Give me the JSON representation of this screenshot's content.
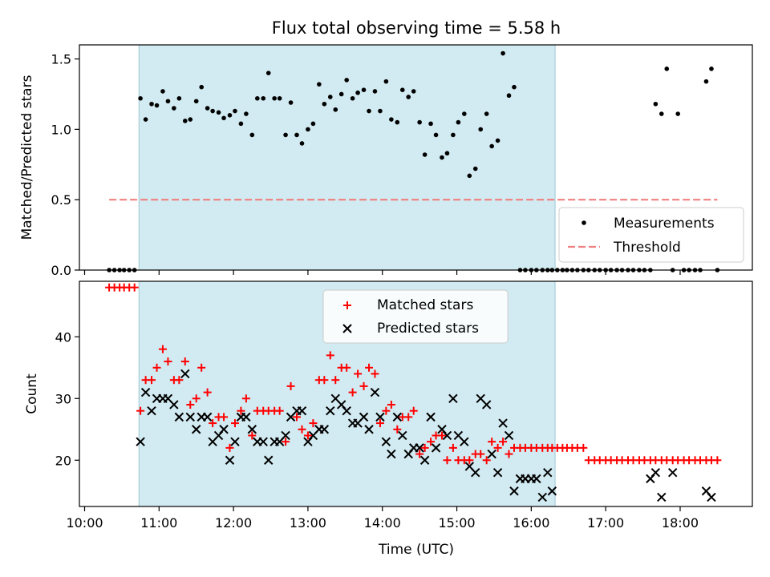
{
  "figure": {
    "title": "Flux total observing time = 5.58 h"
  },
  "chart_data": [
    {
      "type": "scatter",
      "ylabel": "Matched/Predicted stars",
      "ylim": [
        0,
        1.6
      ],
      "yticks": [
        "0.0",
        "0.5",
        "1.0",
        "1.5"
      ],
      "xlim": [
        9.93,
        18.97
      ],
      "shaded_interval": {
        "from": 10.73,
        "to": 16.32,
        "color": "#add8e6"
      },
      "legend": {
        "position": "lower-right",
        "labels": [
          "Measurements",
          "Threshold"
        ]
      },
      "threshold": {
        "name": "Threshold",
        "value": 0.5,
        "from": 10.33,
        "to": 18.5,
        "color": "#f08080"
      },
      "series": [
        {
          "name": "Measurements",
          "color": "#000000",
          "x": [
            10.33,
            10.4,
            10.47,
            10.53,
            10.6,
            10.67,
            10.75,
            10.82,
            10.9,
            10.97,
            11.05,
            11.12,
            11.2,
            11.27,
            11.35,
            11.42,
            11.5,
            11.57,
            11.65,
            11.72,
            11.8,
            11.87,
            11.95,
            12.02,
            12.1,
            12.17,
            12.25,
            12.32,
            12.4,
            12.47,
            12.55,
            12.62,
            12.7,
            12.77,
            12.85,
            12.92,
            13.0,
            13.07,
            13.15,
            13.22,
            13.3,
            13.37,
            13.45,
            13.52,
            13.6,
            13.67,
            13.75,
            13.82,
            13.9,
            13.97,
            14.05,
            14.12,
            14.2,
            14.27,
            14.35,
            14.42,
            14.5,
            14.57,
            14.65,
            14.72,
            14.8,
            14.87,
            14.95,
            15.02,
            15.1,
            15.17,
            15.25,
            15.32,
            15.4,
            15.47,
            15.55,
            15.62,
            15.7,
            15.77,
            15.85,
            15.92,
            16.0,
            16.07,
            16.15,
            16.22,
            16.28,
            16.35,
            16.42,
            16.48,
            16.55,
            16.62,
            16.7,
            16.77,
            16.85,
            16.92,
            17.0,
            17.07,
            17.15,
            17.22,
            17.3,
            17.37,
            17.45,
            17.52,
            17.6,
            17.67,
            17.75,
            17.82,
            17.9,
            17.97,
            18.05,
            18.12,
            18.2,
            18.27,
            18.35,
            18.42,
            18.5
          ],
          "y": [
            0,
            0,
            0,
            0,
            0,
            0,
            1.22,
            1.07,
            1.18,
            1.17,
            1.27,
            1.2,
            1.15,
            1.22,
            1.06,
            1.07,
            1.2,
            1.3,
            1.15,
            1.13,
            1.12,
            1.08,
            1.1,
            1.13,
            1.04,
            1.11,
            0.96,
            1.22,
            1.22,
            1.4,
            1.22,
            1.22,
            0.96,
            1.19,
            0.96,
            0.9,
            1.0,
            1.04,
            1.32,
            1.18,
            1.23,
            1.14,
            1.25,
            1.35,
            1.22,
            1.26,
            1.28,
            1.13,
            1.27,
            1.13,
            1.34,
            1.07,
            1.05,
            1.28,
            1.23,
            1.27,
            1.05,
            0.82,
            1.04,
            0.96,
            0.8,
            0.83,
            0.96,
            1.05,
            1.11,
            0.67,
            0.72,
            1.0,
            1.11,
            0.88,
            0.92,
            1.54,
            1.24,
            1.3,
            0,
            0,
            0,
            0,
            0,
            0,
            0,
            0,
            0,
            0,
            0,
            0,
            0,
            0,
            0,
            0,
            0,
            0,
            0,
            0,
            0,
            0,
            0,
            0,
            0,
            1.18,
            1.11,
            1.43,
            0,
            1.11,
            0,
            0,
            0,
            0,
            1.34,
            1.43,
            0
          ],
          "x_nonzero_order": "values listed in x order"
        }
      ]
    },
    {
      "type": "scatter",
      "xlabel": "Time (UTC)",
      "ylabel": "Count",
      "ylim": [
        12.5,
        49
      ],
      "yticks": [
        "20",
        "30",
        "40"
      ],
      "xlim": [
        9.93,
        18.97
      ],
      "xticks": [
        "10:00",
        "11:00",
        "12:00",
        "13:00",
        "14:00",
        "15:00",
        "16:00",
        "17:00",
        "18:00"
      ],
      "shaded_interval": {
        "from": 10.73,
        "to": 16.32,
        "color": "#add8e6"
      },
      "legend": {
        "position": "top-center",
        "labels": [
          "Matched stars",
          "Predicted stars"
        ]
      },
      "series": [
        {
          "name": "Matched stars",
          "marker": "plus",
          "color": "#ff0000",
          "x": [
            10.33,
            10.4,
            10.47,
            10.53,
            10.6,
            10.67,
            10.75,
            10.82,
            10.9,
            10.97,
            11.05,
            11.12,
            11.2,
            11.27,
            11.35,
            11.42,
            11.5,
            11.57,
            11.65,
            11.72,
            11.8,
            11.87,
            11.95,
            12.02,
            12.1,
            12.17,
            12.25,
            12.32,
            12.4,
            12.47,
            12.55,
            12.62,
            12.7,
            12.77,
            12.85,
            12.92,
            13.0,
            13.07,
            13.15,
            13.22,
            13.3,
            13.37,
            13.45,
            13.52,
            13.6,
            13.67,
            13.75,
            13.82,
            13.9,
            13.97,
            14.05,
            14.12,
            14.2,
            14.27,
            14.35,
            14.42,
            14.5,
            14.57,
            14.65,
            14.72,
            14.8,
            14.87,
            14.95,
            15.02,
            15.1,
            15.17,
            15.25,
            15.32,
            15.4,
            15.47,
            15.55,
            15.62,
            15.7,
            15.77,
            15.85,
            15.92,
            16.0,
            16.07,
            16.15,
            16.22,
            16.28,
            16.35,
            16.42,
            16.48,
            16.55,
            16.62,
            16.7,
            16.77,
            16.85,
            16.92,
            17.0,
            17.07,
            17.15,
            17.22,
            17.3,
            17.37,
            17.45,
            17.52,
            17.6,
            17.67,
            17.75,
            17.82,
            17.9,
            17.97,
            18.05,
            18.12,
            18.2,
            18.27,
            18.35,
            18.42,
            18.5
          ],
          "y": [
            48,
            48,
            48,
            48,
            48,
            48,
            28,
            33,
            33,
            35,
            38,
            36,
            33,
            33,
            36,
            29,
            30,
            35,
            31,
            26,
            27,
            27,
            22,
            26,
            28,
            30,
            24,
            28,
            28,
            28,
            28,
            28,
            23,
            32,
            27,
            25,
            24,
            26,
            33,
            33,
            37,
            33,
            35,
            35,
            31,
            34,
            32,
            35,
            34,
            26,
            28,
            29,
            25,
            27,
            27,
            28,
            21,
            22,
            23,
            24,
            24,
            20,
            22,
            20,
            20,
            20,
            21,
            21,
            20,
            23,
            22,
            23,
            21,
            22,
            22,
            22,
            22,
            22,
            22,
            22,
            22,
            22,
            22,
            22,
            22,
            22,
            22,
            20,
            20,
            20,
            20,
            20,
            20,
            20,
            20,
            20,
            20,
            20,
            20,
            20,
            20,
            20,
            20,
            20,
            20,
            20,
            20,
            20,
            20,
            20,
            20
          ]
        },
        {
          "name": "Predicted stars",
          "marker": "x",
          "color": "#000000",
          "x": [
            10.75,
            10.82,
            10.9,
            10.97,
            11.05,
            11.12,
            11.2,
            11.27,
            11.35,
            11.42,
            11.5,
            11.57,
            11.65,
            11.72,
            11.8,
            11.87,
            11.95,
            12.02,
            12.1,
            12.17,
            12.25,
            12.32,
            12.4,
            12.47,
            12.55,
            12.62,
            12.7,
            12.77,
            12.85,
            12.92,
            13.0,
            13.07,
            13.15,
            13.22,
            13.3,
            13.37,
            13.45,
            13.52,
            13.6,
            13.67,
            13.75,
            13.82,
            13.9,
            13.97,
            14.05,
            14.12,
            14.2,
            14.27,
            14.35,
            14.42,
            14.5,
            14.57,
            14.65,
            14.72,
            14.8,
            14.87,
            14.95,
            15.02,
            15.1,
            15.17,
            15.25,
            15.32,
            15.4,
            15.47,
            15.55,
            15.62,
            15.7,
            15.77,
            15.85,
            15.92,
            16.0,
            16.07,
            16.15,
            16.22,
            16.28,
            17.6,
            17.67,
            17.75,
            17.9,
            18.35,
            18.42
          ],
          "y": [
            23,
            31,
            28,
            30,
            30,
            30,
            29,
            27,
            34,
            27,
            25,
            27,
            27,
            23,
            24,
            25,
            20,
            23,
            27,
            27,
            25,
            23,
            23,
            20,
            23,
            23,
            24,
            27,
            28,
            28,
            23,
            24,
            25,
            25,
            28,
            30,
            29,
            28,
            26,
            26,
            27,
            25,
            31,
            27,
            23,
            21,
            27,
            24,
            21,
            22,
            22,
            20,
            27,
            22,
            25,
            24,
            30,
            24,
            23,
            19,
            18,
            30,
            29,
            21,
            18,
            26,
            24,
            15,
            17,
            17,
            17,
            17,
            14,
            18,
            15,
            17,
            18,
            14,
            18,
            15,
            14
          ]
        }
      ]
    }
  ]
}
